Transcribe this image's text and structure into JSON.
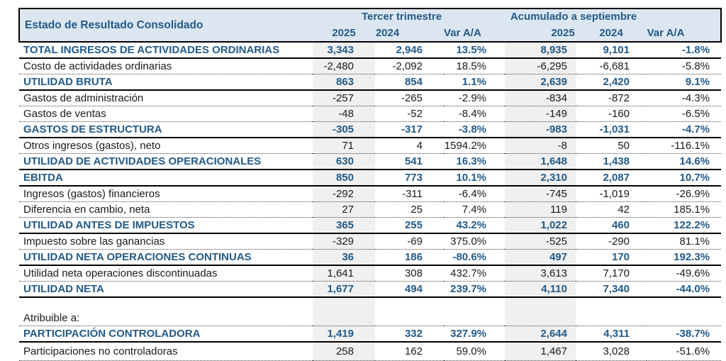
{
  "table": {
    "title": "Estado de Resultado Consolidado",
    "col_groups": [
      {
        "label": "Tercer trimestre"
      },
      {
        "label": "Acumulado a septiembre"
      }
    ],
    "col_headers": [
      "2025",
      "2024",
      "Var A/A",
      "2025",
      "2024",
      "Var A/A"
    ],
    "rows": [
      {
        "label": "TOTAL INGRESOS DE ACTIVIDADES ORDINARIAS",
        "style": "total",
        "values": [
          "3,343",
          "2,946",
          "13.5%",
          "8,935",
          "9,101",
          "-1.8%"
        ]
      },
      {
        "label": "Costo de actividades ordinarias",
        "style": "normal",
        "values": [
          "-2,480",
          "-2,092",
          "18.5%",
          "-6,295",
          "-6,681",
          "-5.8%"
        ]
      },
      {
        "label": "UTILIDAD BRUTA",
        "style": "total",
        "values": [
          "863",
          "854",
          "1.1%",
          "2,639",
          "2,420",
          "9.1%"
        ]
      },
      {
        "label": "Gastos de administración",
        "style": "normal",
        "values": [
          "-257",
          "-265",
          "-2.9%",
          "-834",
          "-872",
          "-4.3%"
        ]
      },
      {
        "label": "Gastos de ventas",
        "style": "normal",
        "values": [
          "-48",
          "-52",
          "-8.4%",
          "-149",
          "-160",
          "-6.5%"
        ]
      },
      {
        "label": "GASTOS DE ESTRUCTURA",
        "style": "total",
        "values": [
          "-305",
          "-317",
          "-3.8%",
          "-983",
          "-1,031",
          "-4.7%"
        ]
      },
      {
        "label": "Otros ingresos (gastos), neto",
        "style": "normal",
        "values": [
          "71",
          "4",
          "1594.2%",
          "-8",
          "50",
          "-116.1%"
        ]
      },
      {
        "label": "UTILIDAD DE ACTIVIDADES OPERACIONALES",
        "style": "total",
        "values": [
          "630",
          "541",
          "16.3%",
          "1,648",
          "1,438",
          "14.6%"
        ]
      },
      {
        "label": "EBITDA",
        "style": "total",
        "values": [
          "850",
          "773",
          "10.1%",
          "2,310",
          "2,087",
          "10.7%"
        ]
      },
      {
        "label": "Ingresos (gastos) financieros",
        "style": "normal",
        "values": [
          "-292",
          "-311",
          "-6.4%",
          "-745",
          "-1,019",
          "-26.9%"
        ]
      },
      {
        "label": "Diferencia en cambio, neta",
        "style": "normal",
        "values": [
          "27",
          "25",
          "7.4%",
          "119",
          "42",
          "185.1%"
        ]
      },
      {
        "label": "UTILIDAD ANTES DE IMPUESTOS",
        "style": "total",
        "values": [
          "365",
          "255",
          "43.2%",
          "1,022",
          "460",
          "122.2%"
        ]
      },
      {
        "label": "Impuesto sobre las ganancias",
        "style": "normal",
        "values": [
          "-329",
          "-69",
          "375.0%",
          "-525",
          "-290",
          "81.1%"
        ]
      },
      {
        "label": "UTILIDAD NETA OPERACIONES CONTINUAS",
        "style": "total",
        "values": [
          "36",
          "186",
          "-80.6%",
          "497",
          "170",
          "192.3%"
        ]
      },
      {
        "label": "Utilidad neta operaciones discontinuadas",
        "style": "normal",
        "values": [
          "1,641",
          "308",
          "432.7%",
          "3,613",
          "7,170",
          "-49.6%"
        ]
      },
      {
        "label": "UTILIDAD NETA",
        "style": "total",
        "values": [
          "1,677",
          "494",
          "239.7%",
          "4,110",
          "7,340",
          "-44.0%"
        ]
      },
      {
        "label": "",
        "style": "spacer",
        "values": [
          "",
          "",
          "",
          "",
          "",
          ""
        ]
      },
      {
        "label": "Atribuible a:",
        "style": "normal",
        "values": [
          "",
          "",
          "",
          "",
          "",
          ""
        ]
      },
      {
        "label": "PARTICIPACIÓN CONTROLADORA",
        "style": "total",
        "values": [
          "1,419",
          "332",
          "327.9%",
          "2,644",
          "4,311",
          "-38.7%"
        ]
      },
      {
        "label": "Participaciones no controladoras",
        "style": "normal",
        "values": [
          "258",
          "162",
          "59.0%",
          "1,467",
          "3,028",
          "-51.6%"
        ]
      }
    ],
    "colors": {
      "header_bg": "#dce6f1",
      "accent_text": "#235a87",
      "band_bg": "#f0f0f0",
      "border": "#000000"
    }
  }
}
